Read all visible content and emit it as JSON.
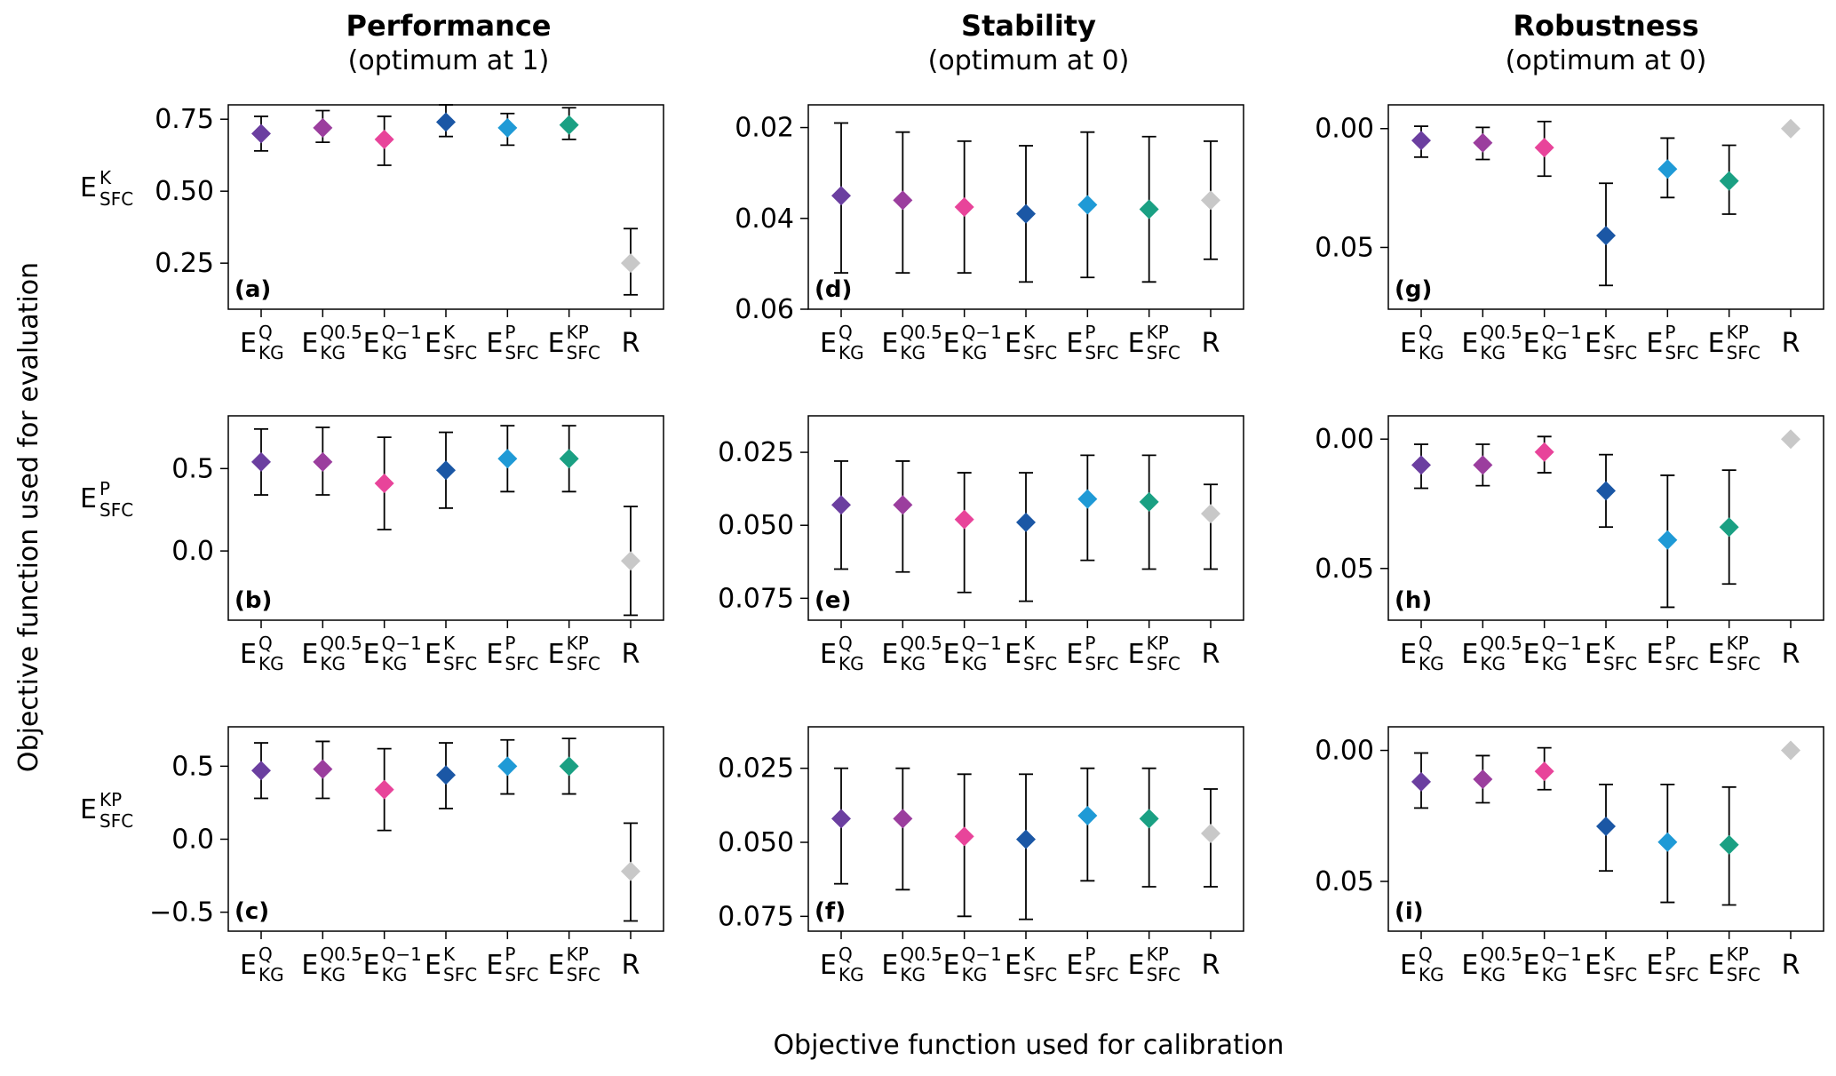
{
  "figure": {
    "global_xlabel": "Objective function used for calibration",
    "global_ylabel": "Objective function used for evaluation"
  },
  "columns": [
    {
      "title": "Performance",
      "subtitle": "(optimum at 1)"
    },
    {
      "title": "Stability",
      "subtitle": "(optimum at 0)"
    },
    {
      "title": "Robustness",
      "subtitle": "(optimum at 0)"
    }
  ],
  "rows": [
    {
      "base": "E",
      "sup": "K",
      "sub": "SFC"
    },
    {
      "base": "E",
      "sup": "P",
      "sub": "SFC"
    },
    {
      "base": "E",
      "sup": "KP",
      "sub": "SFC"
    }
  ],
  "categories": [
    {
      "base": "E",
      "sup": "Q",
      "sub": "KG"
    },
    {
      "base": "E",
      "sup": "Q0.5",
      "sub": "KG"
    },
    {
      "base": "E",
      "sup": "Q−1",
      "sub": "KG"
    },
    {
      "base": "E",
      "sup": "K",
      "sub": "SFC"
    },
    {
      "base": "E",
      "sup": "P",
      "sub": "SFC"
    },
    {
      "base": "E",
      "sup": "KP",
      "sub": "SFC"
    },
    {
      "base": "R",
      "sup": "",
      "sub": ""
    }
  ],
  "colors": [
    "#6b3fa0",
    "#9b3e9e",
    "#e8449a",
    "#1b57a5",
    "#1f9ad6",
    "#1aa083",
    "#c8c8c8"
  ],
  "chart_data": [
    {
      "type": "errorbar",
      "panel": "(a)",
      "row": 0,
      "col": 0,
      "invert": false,
      "ylim": [
        0.09,
        0.8
      ],
      "yticks": [
        0.25,
        0.5,
        0.75
      ],
      "ytick_labels": [
        "0.25",
        "0.50",
        "0.75"
      ],
      "series": [
        {
          "mean": 0.7,
          "low": 0.64,
          "high": 0.76
        },
        {
          "mean": 0.72,
          "low": 0.67,
          "high": 0.78
        },
        {
          "mean": 0.68,
          "low": 0.59,
          "high": 0.76
        },
        {
          "mean": 0.74,
          "low": 0.69,
          "high": 0.8
        },
        {
          "mean": 0.72,
          "low": 0.66,
          "high": 0.77
        },
        {
          "mean": 0.73,
          "low": 0.68,
          "high": 0.79
        },
        {
          "mean": 0.25,
          "low": 0.14,
          "high": 0.37
        }
      ]
    },
    {
      "type": "errorbar",
      "panel": "(b)",
      "row": 1,
      "col": 0,
      "invert": false,
      "ylim": [
        -0.42,
        0.82
      ],
      "yticks": [
        0.0,
        0.5
      ],
      "ytick_labels": [
        "0.0",
        "0.5"
      ],
      "series": [
        {
          "mean": 0.54,
          "low": 0.34,
          "high": 0.74
        },
        {
          "mean": 0.54,
          "low": 0.34,
          "high": 0.75
        },
        {
          "mean": 0.41,
          "low": 0.13,
          "high": 0.69
        },
        {
          "mean": 0.49,
          "low": 0.26,
          "high": 0.72
        },
        {
          "mean": 0.56,
          "low": 0.36,
          "high": 0.76
        },
        {
          "mean": 0.56,
          "low": 0.36,
          "high": 0.76
        },
        {
          "mean": -0.06,
          "low": -0.39,
          "high": 0.27
        }
      ]
    },
    {
      "type": "errorbar",
      "panel": "(c)",
      "row": 2,
      "col": 0,
      "invert": false,
      "ylim": [
        -0.63,
        0.77
      ],
      "yticks": [
        -0.5,
        0.0,
        0.5
      ],
      "ytick_labels": [
        "−0.5",
        "0.0",
        "0.5"
      ],
      "series": [
        {
          "mean": 0.47,
          "low": 0.28,
          "high": 0.66
        },
        {
          "mean": 0.48,
          "low": 0.28,
          "high": 0.67
        },
        {
          "mean": 0.34,
          "low": 0.06,
          "high": 0.62
        },
        {
          "mean": 0.44,
          "low": 0.21,
          "high": 0.66
        },
        {
          "mean": 0.5,
          "low": 0.31,
          "high": 0.68
        },
        {
          "mean": 0.5,
          "low": 0.31,
          "high": 0.69
        },
        {
          "mean": -0.22,
          "low": -0.56,
          "high": 0.11
        }
      ]
    },
    {
      "type": "errorbar",
      "panel": "(d)",
      "row": 0,
      "col": 1,
      "invert": true,
      "ylim": [
        0.015,
        0.06
      ],
      "yticks": [
        0.02,
        0.04,
        0.06
      ],
      "ytick_labels": [
        "0.02",
        "0.04",
        "0.06"
      ],
      "series": [
        {
          "mean": 0.035,
          "low": 0.019,
          "high": 0.052
        },
        {
          "mean": 0.036,
          "low": 0.021,
          "high": 0.052
        },
        {
          "mean": 0.0375,
          "low": 0.023,
          "high": 0.052
        },
        {
          "mean": 0.039,
          "low": 0.024,
          "high": 0.054
        },
        {
          "mean": 0.037,
          "low": 0.021,
          "high": 0.053
        },
        {
          "mean": 0.038,
          "low": 0.022,
          "high": 0.054
        },
        {
          "mean": 0.036,
          "low": 0.023,
          "high": 0.049
        }
      ]
    },
    {
      "type": "errorbar",
      "panel": "(e)",
      "row": 1,
      "col": 1,
      "invert": true,
      "ylim": [
        0.0125,
        0.0825
      ],
      "yticks": [
        0.025,
        0.05,
        0.075
      ],
      "ytick_labels": [
        "0.025",
        "0.050",
        "0.075"
      ],
      "series": [
        {
          "mean": 0.043,
          "low": 0.028,
          "high": 0.065
        },
        {
          "mean": 0.043,
          "low": 0.028,
          "high": 0.066
        },
        {
          "mean": 0.048,
          "low": 0.032,
          "high": 0.073
        },
        {
          "mean": 0.049,
          "low": 0.032,
          "high": 0.076
        },
        {
          "mean": 0.041,
          "low": 0.026,
          "high": 0.062
        },
        {
          "mean": 0.042,
          "low": 0.026,
          "high": 0.065
        },
        {
          "mean": 0.046,
          "low": 0.036,
          "high": 0.065
        }
      ]
    },
    {
      "type": "errorbar",
      "panel": "(f)",
      "row": 2,
      "col": 1,
      "invert": true,
      "ylim": [
        0.011,
        0.08
      ],
      "yticks": [
        0.025,
        0.05,
        0.075
      ],
      "ytick_labels": [
        "0.025",
        "0.050",
        "0.075"
      ],
      "series": [
        {
          "mean": 0.042,
          "low": 0.025,
          "high": 0.064
        },
        {
          "mean": 0.042,
          "low": 0.025,
          "high": 0.066
        },
        {
          "mean": 0.048,
          "low": 0.027,
          "high": 0.075
        },
        {
          "mean": 0.049,
          "low": 0.027,
          "high": 0.076
        },
        {
          "mean": 0.041,
          "low": 0.025,
          "high": 0.063
        },
        {
          "mean": 0.042,
          "low": 0.025,
          "high": 0.065
        },
        {
          "mean": 0.047,
          "low": 0.032,
          "high": 0.065
        }
      ]
    },
    {
      "type": "errorbar",
      "panel": "(g)",
      "row": 0,
      "col": 2,
      "invert": true,
      "ylim": [
        -0.01,
        0.076
      ],
      "yticks": [
        0.0,
        0.05
      ],
      "ytick_labels": [
        "0.00",
        "0.05"
      ],
      "series": [
        {
          "mean": 0.005,
          "low": -0.001,
          "high": 0.012
        },
        {
          "mean": 0.006,
          "low": -0.0005,
          "high": 0.013
        },
        {
          "mean": 0.008,
          "low": -0.003,
          "high": 0.02
        },
        {
          "mean": 0.045,
          "low": 0.023,
          "high": 0.066
        },
        {
          "mean": 0.017,
          "low": 0.004,
          "high": 0.029
        },
        {
          "mean": 0.022,
          "low": 0.007,
          "high": 0.036
        },
        {
          "mean": 0.0,
          "low": 0.0,
          "high": 0.0
        }
      ]
    },
    {
      "type": "errorbar",
      "panel": "(h)",
      "row": 1,
      "col": 2,
      "invert": true,
      "ylim": [
        -0.009,
        0.07
      ],
      "yticks": [
        0.0,
        0.05
      ],
      "ytick_labels": [
        "0.00",
        "0.05"
      ],
      "series": [
        {
          "mean": 0.01,
          "low": 0.002,
          "high": 0.019
        },
        {
          "mean": 0.01,
          "low": 0.002,
          "high": 0.018
        },
        {
          "mean": 0.005,
          "low": -0.001,
          "high": 0.013
        },
        {
          "mean": 0.02,
          "low": 0.006,
          "high": 0.034
        },
        {
          "mean": 0.039,
          "low": 0.014,
          "high": 0.065
        },
        {
          "mean": 0.034,
          "low": 0.012,
          "high": 0.056
        },
        {
          "mean": 0.0,
          "low": 0.0,
          "high": 0.0
        }
      ]
    },
    {
      "type": "errorbar",
      "panel": "(i)",
      "row": 2,
      "col": 2,
      "invert": true,
      "ylim": [
        -0.009,
        0.069
      ],
      "yticks": [
        0.0,
        0.05
      ],
      "ytick_labels": [
        "0.00",
        "0.05"
      ],
      "series": [
        {
          "mean": 0.012,
          "low": 0.001,
          "high": 0.022
        },
        {
          "mean": 0.011,
          "low": 0.002,
          "high": 0.02
        },
        {
          "mean": 0.008,
          "low": -0.001,
          "high": 0.015
        },
        {
          "mean": 0.029,
          "low": 0.013,
          "high": 0.046
        },
        {
          "mean": 0.035,
          "low": 0.013,
          "high": 0.058
        },
        {
          "mean": 0.036,
          "low": 0.014,
          "high": 0.059
        },
        {
          "mean": 0.0,
          "low": 0.0,
          "high": 0.0
        }
      ]
    }
  ]
}
